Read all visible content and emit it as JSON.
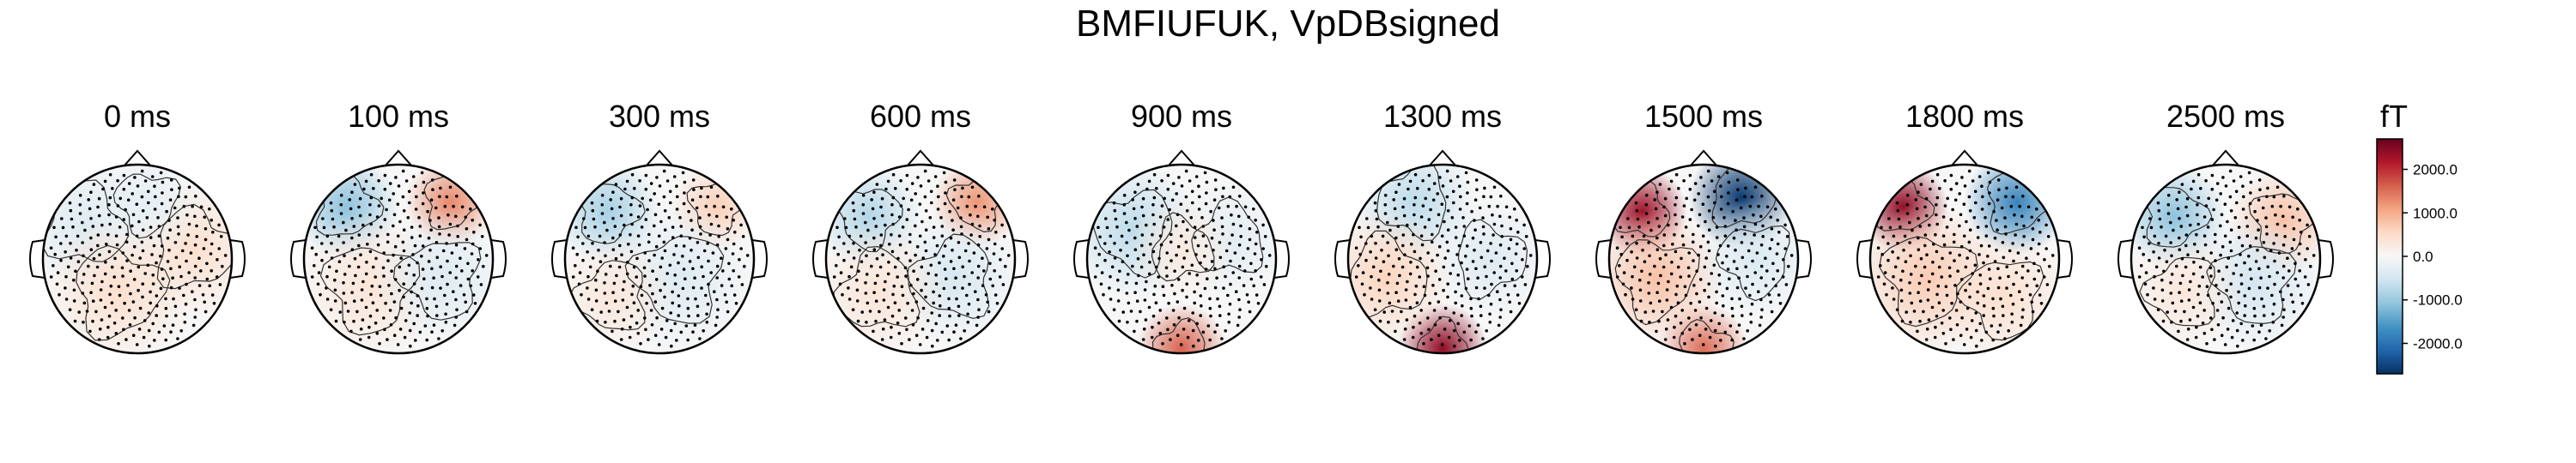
{
  "figure": {
    "title": "BMFIUFUK, VpDBsigned"
  },
  "chart_data": {
    "type": "heatmap",
    "title": "BMFIUFUK, VpDBsigned",
    "unit": "fT",
    "colorbar": {
      "label": "fT",
      "range": [
        -2700,
        2700
      ],
      "ticks": [
        2000,
        1000,
        0,
        -1000,
        -2000
      ],
      "tick_labels": [
        "2000.0",
        "1000.0",
        "0.0",
        "-1000.0",
        "-2000.0"
      ],
      "colormap": "RdBu_r",
      "colors": [
        "#053061",
        "#2166ac",
        "#4393c3",
        "#92c5de",
        "#d1e5f0",
        "#f7f7f7",
        "#fddbc7",
        "#f4a582",
        "#d6604d",
        "#b2182b",
        "#67001f"
      ]
    },
    "topomaps": [
      {
        "time_ms": 0,
        "label": "0 ms",
        "blobs": [
          {
            "pos": [
              -0.55,
              0.35
            ],
            "value": -350,
            "spread": 0.45
          },
          {
            "pos": [
              0.6,
              0.1
            ],
            "value": 450,
            "spread": 0.45
          },
          {
            "pos": [
              -0.2,
              -0.35
            ],
            "value": 450,
            "spread": 0.5
          },
          {
            "pos": [
              0.1,
              0.6
            ],
            "value": -250,
            "spread": 0.35
          }
        ]
      },
      {
        "time_ms": 100,
        "label": "100 ms",
        "blobs": [
          {
            "pos": [
              -0.55,
              0.55
            ],
            "value": -1100,
            "spread": 0.35
          },
          {
            "pos": [
              0.55,
              0.6
            ],
            "value": 1300,
            "spread": 0.3
          },
          {
            "pos": [
              -0.3,
              -0.3
            ],
            "value": 350,
            "spread": 0.5
          },
          {
            "pos": [
              0.45,
              -0.2
            ],
            "value": -350,
            "spread": 0.45
          }
        ]
      },
      {
        "time_ms": 300,
        "label": "300 ms",
        "blobs": [
          {
            "pos": [
              -0.55,
              0.5
            ],
            "value": -900,
            "spread": 0.35
          },
          {
            "pos": [
              0.6,
              0.55
            ],
            "value": 650,
            "spread": 0.3
          },
          {
            "pos": [
              0.2,
              -0.2
            ],
            "value": -350,
            "spread": 0.5
          },
          {
            "pos": [
              -0.5,
              -0.4
            ],
            "value": 300,
            "spread": 0.4
          }
        ]
      },
      {
        "time_ms": 600,
        "label": "600 ms",
        "blobs": [
          {
            "pos": [
              -0.55,
              0.45
            ],
            "value": -800,
            "spread": 0.35
          },
          {
            "pos": [
              0.6,
              0.6
            ],
            "value": 1200,
            "spread": 0.3
          },
          {
            "pos": [
              0.35,
              -0.2
            ],
            "value": -450,
            "spread": 0.45
          },
          {
            "pos": [
              -0.45,
              -0.35
            ],
            "value": 350,
            "spread": 0.45
          }
        ]
      },
      {
        "time_ms": 900,
        "label": "900 ms",
        "blobs": [
          {
            "pos": [
              -0.5,
              0.3
            ],
            "value": -700,
            "spread": 0.45
          },
          {
            "pos": [
              0.0,
              -0.95
            ],
            "value": 1600,
            "spread": 0.3
          },
          {
            "pos": [
              0.5,
              0.2
            ],
            "value": -300,
            "spread": 0.4
          },
          {
            "pos": [
              0.0,
              0.1
            ],
            "value": 250,
            "spread": 0.35
          }
        ]
      },
      {
        "time_ms": 1300,
        "label": "1300 ms",
        "blobs": [
          {
            "pos": [
              -0.3,
              0.6
            ],
            "value": -700,
            "spread": 0.4
          },
          {
            "pos": [
              0.0,
              -0.95
            ],
            "value": 2400,
            "spread": 0.3
          },
          {
            "pos": [
              -0.6,
              -0.2
            ],
            "value": 600,
            "spread": 0.45
          },
          {
            "pos": [
              0.5,
              0.0
            ],
            "value": -350,
            "spread": 0.4
          }
        ]
      },
      {
        "time_ms": 1500,
        "label": "1500 ms",
        "blobs": [
          {
            "pos": [
              -0.65,
              0.5
            ],
            "value": 2300,
            "spread": 0.3
          },
          {
            "pos": [
              0.4,
              0.65
            ],
            "value": -2600,
            "spread": 0.35
          },
          {
            "pos": [
              0.0,
              -0.95
            ],
            "value": 1500,
            "spread": 0.3
          },
          {
            "pos": [
              -0.5,
              -0.2
            ],
            "value": 800,
            "spread": 0.45
          },
          {
            "pos": [
              0.55,
              0.0
            ],
            "value": -400,
            "spread": 0.4
          }
        ]
      },
      {
        "time_ms": 1800,
        "label": "1800 ms",
        "blobs": [
          {
            "pos": [
              -0.65,
              0.55
            ],
            "value": 2400,
            "spread": 0.3
          },
          {
            "pos": [
              0.55,
              0.6
            ],
            "value": -1800,
            "spread": 0.35
          },
          {
            "pos": [
              -0.4,
              -0.2
            ],
            "value": 700,
            "spread": 0.5
          },
          {
            "pos": [
              0.4,
              -0.4
            ],
            "value": 450,
            "spread": 0.45
          }
        ]
      },
      {
        "time_ms": 2500,
        "label": "2500 ms",
        "blobs": [
          {
            "pos": [
              -0.55,
              0.45
            ],
            "value": -1100,
            "spread": 0.35
          },
          {
            "pos": [
              0.6,
              0.4
            ],
            "value": 800,
            "spread": 0.35
          },
          {
            "pos": [
              0.3,
              -0.25
            ],
            "value": -500,
            "spread": 0.45
          },
          {
            "pos": [
              -0.45,
              -0.35
            ],
            "value": 300,
            "spread": 0.4
          }
        ]
      }
    ]
  }
}
